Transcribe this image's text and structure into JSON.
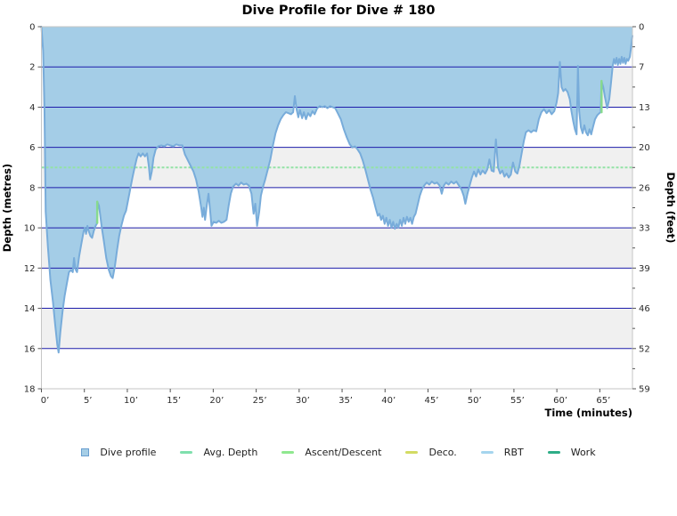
{
  "title": "Dive Profile for Dive # 180",
  "chart_data": {
    "type": "area",
    "title": "Dive Profile for Dive # 180",
    "x_axis": {
      "label": "Time (minutes)",
      "range": [
        0,
        68.8
      ],
      "tick_values": [
        0,
        5,
        10,
        15,
        20,
        25,
        30,
        35,
        40,
        45,
        50,
        55,
        60,
        65
      ],
      "tick_labels": [
        "0’",
        "5’",
        "10’",
        "15’",
        "20’",
        "25’",
        "30’",
        "35’",
        "40’",
        "45’",
        "50’",
        "55’",
        "60’",
        "65’"
      ]
    },
    "y_axis_left": {
      "label": "Depth (metres)",
      "range": [
        0,
        18
      ],
      "tick_values": [
        0,
        2,
        4,
        6,
        8,
        10,
        12,
        14,
        16,
        18
      ]
    },
    "y_axis_right": {
      "label": "Depth (feet)",
      "tick_labels": [
        "0",
        "7",
        "13",
        "20",
        "26",
        "33",
        "39",
        "46",
        "52",
        "59"
      ]
    },
    "grid": {
      "gridline_interval_m": 2,
      "gray_band_start_depths_m": [
        2,
        6,
        10,
        14
      ]
    },
    "avg_depth_m": 7.0,
    "max_depth_m": 16.2,
    "duration_min": 68.8,
    "dive_profile_points": [
      [
        0,
        0
      ],
      [
        0.2,
        1.2
      ],
      [
        0.35,
        4
      ],
      [
        0.5,
        9.2
      ],
      [
        0.75,
        10.9
      ],
      [
        1.05,
        12.6
      ],
      [
        1.35,
        13.7
      ],
      [
        1.6,
        14.8
      ],
      [
        1.85,
        15.8
      ],
      [
        2,
        16.2
      ],
      [
        2.2,
        15.2
      ],
      [
        2.45,
        14.2
      ],
      [
        2.7,
        13.4
      ],
      [
        2.95,
        12.8
      ],
      [
        3.2,
        12.2
      ],
      [
        3.45,
        12.1
      ],
      [
        3.65,
        12.2
      ],
      [
        3.8,
        11.5
      ],
      [
        3.95,
        12.05
      ],
      [
        4.15,
        12.2
      ],
      [
        4.4,
        11.4
      ],
      [
        4.65,
        10.8
      ],
      [
        4.9,
        10.2
      ],
      [
        5.05,
        10
      ],
      [
        5.2,
        10.3
      ],
      [
        5.35,
        9.9
      ],
      [
        5.5,
        10.15
      ],
      [
        5.7,
        10.4
      ],
      [
        5.9,
        10.5
      ],
      [
        6.1,
        10.15
      ],
      [
        6.3,
        9.9
      ],
      [
        6.45,
        9.8
      ],
      [
        6.55,
        8.75
      ],
      [
        6.7,
        8.9
      ],
      [
        6.85,
        9.4
      ],
      [
        7,
        9.9
      ],
      [
        7.25,
        10.6
      ],
      [
        7.55,
        11.5
      ],
      [
        7.85,
        12.1
      ],
      [
        8.1,
        12.4
      ],
      [
        8.3,
        12.5
      ],
      [
        8.55,
        11.9
      ],
      [
        8.8,
        11.1
      ],
      [
        9.05,
        10.4
      ],
      [
        9.3,
        9.9
      ],
      [
        9.6,
        9.4
      ],
      [
        9.85,
        9.15
      ],
      [
        10.1,
        8.6
      ],
      [
        10.35,
        8.05
      ],
      [
        10.6,
        7.5
      ],
      [
        10.85,
        7
      ],
      [
        11.1,
        6.55
      ],
      [
        11.3,
        6.3
      ],
      [
        11.55,
        6.45
      ],
      [
        11.8,
        6.3
      ],
      [
        12.05,
        6.45
      ],
      [
        12.3,
        6.3
      ],
      [
        12.5,
        6.9
      ],
      [
        12.65,
        7.6
      ],
      [
        12.85,
        7.2
      ],
      [
        13.05,
        6.5
      ],
      [
        13.3,
        6.1
      ],
      [
        13.6,
        5.95
      ],
      [
        13.95,
        5.9
      ],
      [
        14.3,
        5.95
      ],
      [
        14.65,
        5.85
      ],
      [
        15,
        5.9
      ],
      [
        15.35,
        5.95
      ],
      [
        15.7,
        5.85
      ],
      [
        16.05,
        5.9
      ],
      [
        16.4,
        5.9
      ],
      [
        16.7,
        6.35
      ],
      [
        17,
        6.6
      ],
      [
        17.35,
        6.9
      ],
      [
        17.7,
        7.2
      ],
      [
        18,
        7.6
      ],
      [
        18.3,
        8.2
      ],
      [
        18.6,
        9
      ],
      [
        18.75,
        9.45
      ],
      [
        18.9,
        9
      ],
      [
        19.05,
        9.6
      ],
      [
        19.25,
        8.9
      ],
      [
        19.45,
        8.3
      ],
      [
        19.65,
        9.2
      ],
      [
        19.8,
        9.9
      ],
      [
        20.05,
        9.7
      ],
      [
        20.35,
        9.75
      ],
      [
        20.65,
        9.65
      ],
      [
        20.95,
        9.75
      ],
      [
        21.25,
        9.7
      ],
      [
        21.55,
        9.6
      ],
      [
        21.8,
        8.9
      ],
      [
        22.05,
        8.3
      ],
      [
        22.3,
        7.95
      ],
      [
        22.65,
        7.8
      ],
      [
        22.95,
        7.9
      ],
      [
        23.25,
        7.75
      ],
      [
        23.55,
        7.85
      ],
      [
        23.85,
        7.8
      ],
      [
        24.15,
        7.9
      ],
      [
        24.45,
        8.3
      ],
      [
        24.7,
        9.3
      ],
      [
        24.9,
        8.8
      ],
      [
        25.1,
        9.9
      ],
      [
        25.35,
        9.2
      ],
      [
        25.55,
        8.4
      ],
      [
        25.8,
        7.95
      ],
      [
        26.05,
        7.6
      ],
      [
        26.35,
        7.1
      ],
      [
        26.65,
        6.6
      ],
      [
        26.95,
        5.9
      ],
      [
        27.25,
        5.3
      ],
      [
        27.55,
        4.9
      ],
      [
        27.85,
        4.6
      ],
      [
        28.15,
        4.4
      ],
      [
        28.45,
        4.25
      ],
      [
        28.75,
        4.3
      ],
      [
        29.05,
        4.35
      ],
      [
        29.3,
        4.25
      ],
      [
        29.5,
        3.45
      ],
      [
        29.7,
        4.1
      ],
      [
        29.9,
        4.5
      ],
      [
        30.1,
        4.15
      ],
      [
        30.35,
        4.55
      ],
      [
        30.55,
        4.25
      ],
      [
        30.8,
        4.6
      ],
      [
        31.05,
        4.3
      ],
      [
        31.3,
        4.45
      ],
      [
        31.55,
        4.2
      ],
      [
        31.8,
        4.35
      ],
      [
        32.1,
        4.05
      ],
      [
        32.4,
        3.95
      ],
      [
        32.7,
        4
      ],
      [
        33,
        3.95
      ],
      [
        33.3,
        4.05
      ],
      [
        33.6,
        3.95
      ],
      [
        33.9,
        4
      ],
      [
        34.2,
        4.05
      ],
      [
        34.5,
        4.3
      ],
      [
        34.85,
        4.6
      ],
      [
        35.2,
        5.1
      ],
      [
        35.55,
        5.5
      ],
      [
        35.9,
        5.85
      ],
      [
        36.2,
        6
      ],
      [
        36.5,
        5.95
      ],
      [
        36.8,
        6.1
      ],
      [
        37.1,
        6.3
      ],
      [
        37.4,
        6.65
      ],
      [
        37.7,
        7.1
      ],
      [
        38,
        7.6
      ],
      [
        38.3,
        8.1
      ],
      [
        38.6,
        8.5
      ],
      [
        38.9,
        9
      ],
      [
        39.15,
        9.4
      ],
      [
        39.35,
        9.3
      ],
      [
        39.55,
        9.6
      ],
      [
        39.75,
        9.4
      ],
      [
        39.95,
        9.8
      ],
      [
        40.15,
        9.5
      ],
      [
        40.35,
        9.9
      ],
      [
        40.55,
        9.6
      ],
      [
        40.75,
        10
      ],
      [
        40.95,
        9.7
      ],
      [
        41.15,
        10.05
      ],
      [
        41.35,
        9.8
      ],
      [
        41.55,
        10
      ],
      [
        41.75,
        9.6
      ],
      [
        41.95,
        9.9
      ],
      [
        42.15,
        9.5
      ],
      [
        42.35,
        9.8
      ],
      [
        42.55,
        9.45
      ],
      [
        42.75,
        9.7
      ],
      [
        42.95,
        9.5
      ],
      [
        43.15,
        9.8
      ],
      [
        43.35,
        9.45
      ],
      [
        43.55,
        9.3
      ],
      [
        43.8,
        8.85
      ],
      [
        44.05,
        8.4
      ],
      [
        44.3,
        8.1
      ],
      [
        44.55,
        7.9
      ],
      [
        44.85,
        7.75
      ],
      [
        45.15,
        7.85
      ],
      [
        45.45,
        7.7
      ],
      [
        45.75,
        7.8
      ],
      [
        46.05,
        7.75
      ],
      [
        46.35,
        7.9
      ],
      [
        46.6,
        8.3
      ],
      [
        46.85,
        7.9
      ],
      [
        47.1,
        7.75
      ],
      [
        47.4,
        7.85
      ],
      [
        47.7,
        7.7
      ],
      [
        48,
        7.8
      ],
      [
        48.3,
        7.7
      ],
      [
        48.6,
        7.9
      ],
      [
        48.9,
        8.1
      ],
      [
        49.15,
        8.4
      ],
      [
        49.35,
        8.8
      ],
      [
        49.6,
        8.3
      ],
      [
        49.85,
        7.9
      ],
      [
        50.1,
        7.5
      ],
      [
        50.35,
        7.2
      ],
      [
        50.6,
        7.45
      ],
      [
        50.85,
        7.1
      ],
      [
        51.1,
        7.35
      ],
      [
        51.35,
        7.15
      ],
      [
        51.65,
        7.3
      ],
      [
        51.9,
        7.1
      ],
      [
        52.15,
        6.6
      ],
      [
        52.4,
        7.15
      ],
      [
        52.65,
        7.2
      ],
      [
        52.9,
        5.6
      ],
      [
        53.15,
        7
      ],
      [
        53.4,
        7.3
      ],
      [
        53.65,
        7.15
      ],
      [
        53.9,
        7.45
      ],
      [
        54.15,
        7.3
      ],
      [
        54.4,
        7.5
      ],
      [
        54.65,
        7.35
      ],
      [
        54.9,
        6.75
      ],
      [
        55.15,
        7.2
      ],
      [
        55.4,
        7.3
      ],
      [
        55.65,
        6.9
      ],
      [
        55.9,
        6.3
      ],
      [
        56.15,
        5.7
      ],
      [
        56.4,
        5.25
      ],
      [
        56.7,
        5.15
      ],
      [
        57,
        5.25
      ],
      [
        57.3,
        5.15
      ],
      [
        57.6,
        5.2
      ],
      [
        57.9,
        4.6
      ],
      [
        58.2,
        4.25
      ],
      [
        58.5,
        4.1
      ],
      [
        58.8,
        4.3
      ],
      [
        59.1,
        4.15
      ],
      [
        59.4,
        4.35
      ],
      [
        59.7,
        4.2
      ],
      [
        59.95,
        3.8
      ],
      [
        60.15,
        3.3
      ],
      [
        60.35,
        1.75
      ],
      [
        60.55,
        3
      ],
      [
        60.75,
        3.2
      ],
      [
        61,
        3.1
      ],
      [
        61.25,
        3.25
      ],
      [
        61.5,
        3.6
      ],
      [
        61.7,
        4.2
      ],
      [
        61.9,
        4.7
      ],
      [
        62.1,
        5.1
      ],
      [
        62.3,
        5.35
      ],
      [
        62.45,
        1.95
      ],
      [
        62.6,
        4.2
      ],
      [
        62.8,
        5
      ],
      [
        63,
        5.3
      ],
      [
        63.2,
        4.9
      ],
      [
        63.4,
        5.25
      ],
      [
        63.6,
        5.4
      ],
      [
        63.8,
        5.1
      ],
      [
        64,
        5.35
      ],
      [
        64.2,
        5
      ],
      [
        64.45,
        4.6
      ],
      [
        64.7,
        4.4
      ],
      [
        64.95,
        4.3
      ],
      [
        65.1,
        4.25
      ],
      [
        65.2,
        2.7
      ],
      [
        65.4,
        3
      ],
      [
        65.6,
        3.5
      ],
      [
        65.85,
        4.05
      ],
      [
        66.1,
        3.6
      ],
      [
        66.3,
        2.8
      ],
      [
        66.5,
        1.95
      ],
      [
        66.65,
        1.6
      ],
      [
        66.8,
        1.85
      ],
      [
        66.95,
        1.55
      ],
      [
        67.1,
        1.9
      ],
      [
        67.25,
        1.6
      ],
      [
        67.4,
        1.85
      ],
      [
        67.55,
        1.5
      ],
      [
        67.7,
        1.8
      ],
      [
        67.85,
        1.55
      ],
      [
        68,
        1.85
      ],
      [
        68.15,
        1.6
      ],
      [
        68.3,
        1.7
      ],
      [
        68.5,
        1.5
      ],
      [
        68.65,
        0.95
      ],
      [
        68.8,
        0.45
      ]
    ],
    "fast_ascent_segments": [
      {
        "time_min": 6.5,
        "from_depth_m": 9.75,
        "to_depth_m": 8.7
      },
      {
        "time_min": 65.2,
        "from_depth_m": 4.25,
        "to_depth_m": 2.7
      }
    ],
    "legend": [
      {
        "label": "Dive profile",
        "type": "square",
        "color": "#a6cee6",
        "border": "#6a9fd0"
      },
      {
        "label": "Avg. Depth",
        "type": "line",
        "color": "#7fdfad"
      },
      {
        "label": "Ascent/Descent",
        "type": "line",
        "color": "#8fe88f"
      },
      {
        "label": "Deco.",
        "type": "line",
        "color": "#d3db63"
      },
      {
        "label": "RBT",
        "type": "line",
        "color": "#a5d5ee"
      },
      {
        "label": "Work",
        "type": "line",
        "color": "#2ead87"
      }
    ],
    "colors": {
      "profile_fill": "#a4cde7",
      "profile_line": "#78acda",
      "gridline": "#1d1daa",
      "band_gray": "#f0f0f0",
      "band_white": "#ffffff",
      "avg_depth_line": "#93e2a6",
      "ascent_line": "#87da8e",
      "plot_border": "#c6c6c6",
      "tick_mark": "#555555"
    }
  }
}
